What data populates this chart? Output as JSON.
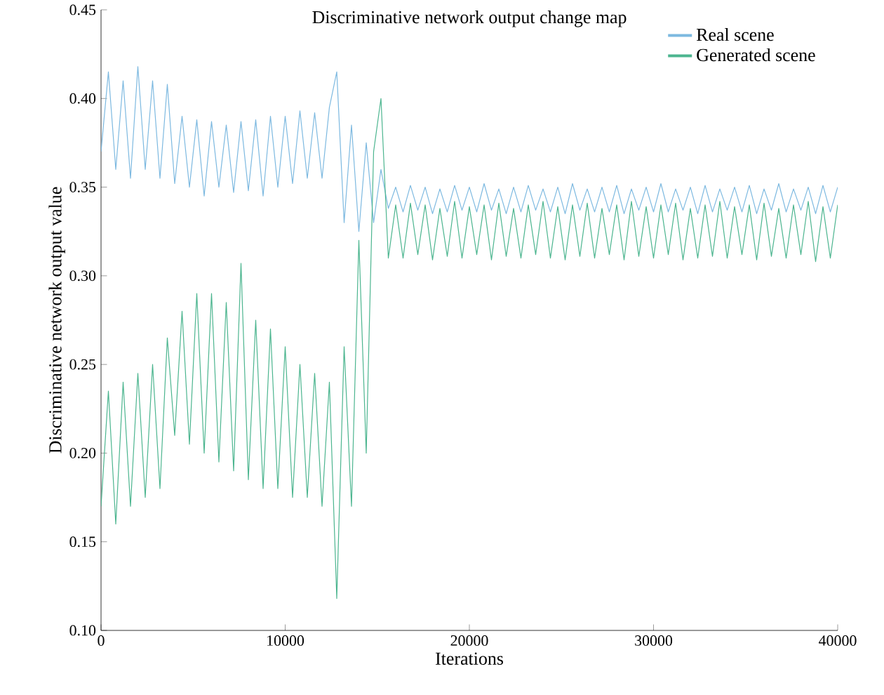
{
  "chart_data": {
    "type": "line",
    "title": "Discriminative network output change map",
    "xlabel": "Iterations",
    "ylabel": "Discriminative network output value",
    "x": [
      0,
      400,
      800,
      1200,
      1600,
      2000,
      2400,
      2800,
      3200,
      3600,
      4000,
      4400,
      4800,
      5200,
      5600,
      6000,
      6400,
      6800,
      7200,
      7600,
      8000,
      8400,
      8800,
      9200,
      9600,
      10000,
      10400,
      10800,
      11200,
      11600,
      12000,
      12400,
      12800,
      13200,
      13600,
      14000,
      14400,
      14800,
      15200,
      15600,
      16000,
      16400,
      16800,
      17200,
      17600,
      18000,
      18400,
      18800,
      19200,
      19600,
      20000,
      20400,
      20800,
      21200,
      21600,
      22000,
      22400,
      22800,
      23200,
      23600,
      24000,
      24400,
      24800,
      25200,
      25600,
      26000,
      26400,
      26800,
      27200,
      27600,
      28000,
      28400,
      28800,
      29200,
      29600,
      30000,
      30400,
      30800,
      31200,
      31600,
      32000,
      32400,
      32800,
      33200,
      33600,
      34000,
      34400,
      34800,
      35200,
      35600,
      36000,
      36400,
      36800,
      37200,
      37600,
      38000,
      38400,
      38800,
      39200,
      39600,
      40000
    ],
    "series": [
      {
        "name": "Real scene",
        "color": "#7db9e0",
        "values": [
          0.37,
          0.415,
          0.36,
          0.41,
          0.355,
          0.418,
          0.36,
          0.41,
          0.355,
          0.408,
          0.352,
          0.39,
          0.35,
          0.388,
          0.345,
          0.387,
          0.35,
          0.385,
          0.347,
          0.387,
          0.348,
          0.388,
          0.345,
          0.39,
          0.35,
          0.39,
          0.352,
          0.393,
          0.355,
          0.392,
          0.355,
          0.395,
          0.415,
          0.33,
          0.385,
          0.325,
          0.375,
          0.33,
          0.36,
          0.338,
          0.35,
          0.336,
          0.351,
          0.337,
          0.35,
          0.335,
          0.349,
          0.336,
          0.351,
          0.337,
          0.35,
          0.336,
          0.352,
          0.337,
          0.349,
          0.335,
          0.35,
          0.336,
          0.351,
          0.337,
          0.349,
          0.336,
          0.35,
          0.335,
          0.352,
          0.337,
          0.349,
          0.336,
          0.35,
          0.336,
          0.351,
          0.335,
          0.349,
          0.337,
          0.35,
          0.336,
          0.352,
          0.336,
          0.349,
          0.337,
          0.35,
          0.335,
          0.351,
          0.336,
          0.349,
          0.337,
          0.35,
          0.336,
          0.351,
          0.335,
          0.349,
          0.337,
          0.352,
          0.336,
          0.349,
          0.337,
          0.35,
          0.335,
          0.351,
          0.336,
          0.35
        ]
      },
      {
        "name": "Generated scene",
        "color": "#4cb58f",
        "values": [
          0.17,
          0.235,
          0.16,
          0.24,
          0.17,
          0.245,
          0.175,
          0.25,
          0.18,
          0.265,
          0.21,
          0.28,
          0.205,
          0.29,
          0.2,
          0.29,
          0.195,
          0.285,
          0.19,
          0.307,
          0.185,
          0.275,
          0.18,
          0.27,
          0.18,
          0.26,
          0.175,
          0.25,
          0.175,
          0.245,
          0.17,
          0.24,
          0.118,
          0.26,
          0.17,
          0.32,
          0.2,
          0.37,
          0.4,
          0.31,
          0.34,
          0.31,
          0.341,
          0.312,
          0.34,
          0.309,
          0.338,
          0.311,
          0.342,
          0.31,
          0.339,
          0.312,
          0.34,
          0.309,
          0.341,
          0.311,
          0.338,
          0.31,
          0.34,
          0.312,
          0.342,
          0.31,
          0.339,
          0.309,
          0.34,
          0.311,
          0.341,
          0.31,
          0.338,
          0.312,
          0.34,
          0.309,
          0.342,
          0.311,
          0.339,
          0.31,
          0.34,
          0.312,
          0.341,
          0.309,
          0.338,
          0.31,
          0.34,
          0.311,
          0.342,
          0.31,
          0.339,
          0.312,
          0.34,
          0.309,
          0.341,
          0.311,
          0.338,
          0.31,
          0.34,
          0.312,
          0.342,
          0.308,
          0.339,
          0.31,
          0.34
        ]
      }
    ],
    "xlim": [
      0,
      40000
    ],
    "ylim": [
      0.1,
      0.45
    ],
    "xticks": [
      0,
      10000,
      20000,
      30000,
      40000
    ],
    "yticks": [
      {
        "value": 0.1,
        "label": "0.10"
      },
      {
        "value": 0.15,
        "label": "0.15"
      },
      {
        "value": 0.2,
        "label": "0.20"
      },
      {
        "value": 0.25,
        "label": "0.25"
      },
      {
        "value": 0.3,
        "label": "0.30"
      },
      {
        "value": 0.35,
        "label": "0.35"
      },
      {
        "value": 0.4,
        "label": "0.40"
      },
      {
        "value": 0.45,
        "label": "0.45"
      }
    ],
    "legend": "top right",
    "grid": false,
    "marker": "none",
    "line_style": "solid"
  }
}
